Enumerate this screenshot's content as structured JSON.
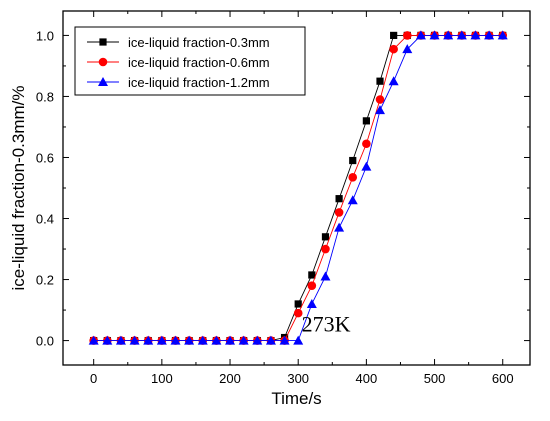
{
  "chart_data": {
    "type": "line",
    "xlabel": "Time/s",
    "ylabel": "ice-liquid fraction-0.3mm/%",
    "xlim": [
      -45,
      640
    ],
    "ylim": [
      -0.08,
      1.08
    ],
    "xticks": [
      0,
      100,
      200,
      300,
      400,
      500,
      600
    ],
    "yticks": [
      0.0,
      0.2,
      0.4,
      0.6,
      0.8,
      1.0
    ],
    "xtick_labels": [
      "0",
      "100",
      "200",
      "300",
      "400",
      "500",
      "600"
    ],
    "ytick_labels": [
      "0.0",
      "0.2",
      "0.4",
      "0.6",
      "0.8",
      "1.0"
    ],
    "grid": false,
    "legend_position": "top-left",
    "annotation": {
      "text": "273K",
      "x": 305,
      "y": 0.03
    },
    "series": [
      {
        "name": "ice-liquid fraction-0.3mm",
        "color": "#000000",
        "marker": "square",
        "x": [
          0,
          20,
          40,
          60,
          80,
          100,
          120,
          140,
          160,
          180,
          200,
          220,
          240,
          260,
          280,
          300,
          320,
          340,
          360,
          380,
          400,
          420,
          440,
          460,
          480,
          500,
          520,
          540,
          560,
          580,
          600
        ],
        "y": [
          0,
          0,
          0,
          0,
          0,
          0,
          0,
          0,
          0,
          0,
          0,
          0,
          0,
          0,
          0.01,
          0.12,
          0.215,
          0.34,
          0.465,
          0.59,
          0.72,
          0.85,
          1.0,
          1.0,
          1.0,
          1.0,
          1.0,
          1.0,
          1.0,
          1.0,
          1.0
        ]
      },
      {
        "name": "ice-liquid fraction-0.6mm",
        "color": "#ff0000",
        "marker": "circle",
        "x": [
          0,
          20,
          40,
          60,
          80,
          100,
          120,
          140,
          160,
          180,
          200,
          220,
          240,
          260,
          280,
          300,
          320,
          340,
          360,
          380,
          400,
          420,
          440,
          460,
          480,
          500,
          520,
          540,
          560,
          580,
          600
        ],
        "y": [
          0,
          0,
          0,
          0,
          0,
          0,
          0,
          0,
          0,
          0,
          0,
          0,
          0,
          0,
          0,
          0.09,
          0.18,
          0.3,
          0.42,
          0.535,
          0.645,
          0.79,
          0.955,
          1.0,
          1.0,
          1.0,
          1.0,
          1.0,
          1.0,
          1.0,
          1.0
        ]
      },
      {
        "name": "ice-liquid fraction-1.2mm",
        "color": "#0000ff",
        "marker": "triangle",
        "x": [
          0,
          20,
          40,
          60,
          80,
          100,
          120,
          140,
          160,
          180,
          200,
          220,
          240,
          260,
          280,
          300,
          320,
          340,
          360,
          380,
          400,
          420,
          440,
          460,
          480,
          500,
          520,
          540,
          560,
          580,
          600
        ],
        "y": [
          0,
          0,
          0,
          0,
          0,
          0,
          0,
          0,
          0,
          0,
          0,
          0,
          0,
          0,
          0,
          0,
          0.12,
          0.21,
          0.37,
          0.46,
          0.57,
          0.755,
          0.85,
          0.955,
          1.0,
          1.0,
          1.0,
          1.0,
          1.0,
          1.0,
          1.0
        ]
      }
    ]
  }
}
